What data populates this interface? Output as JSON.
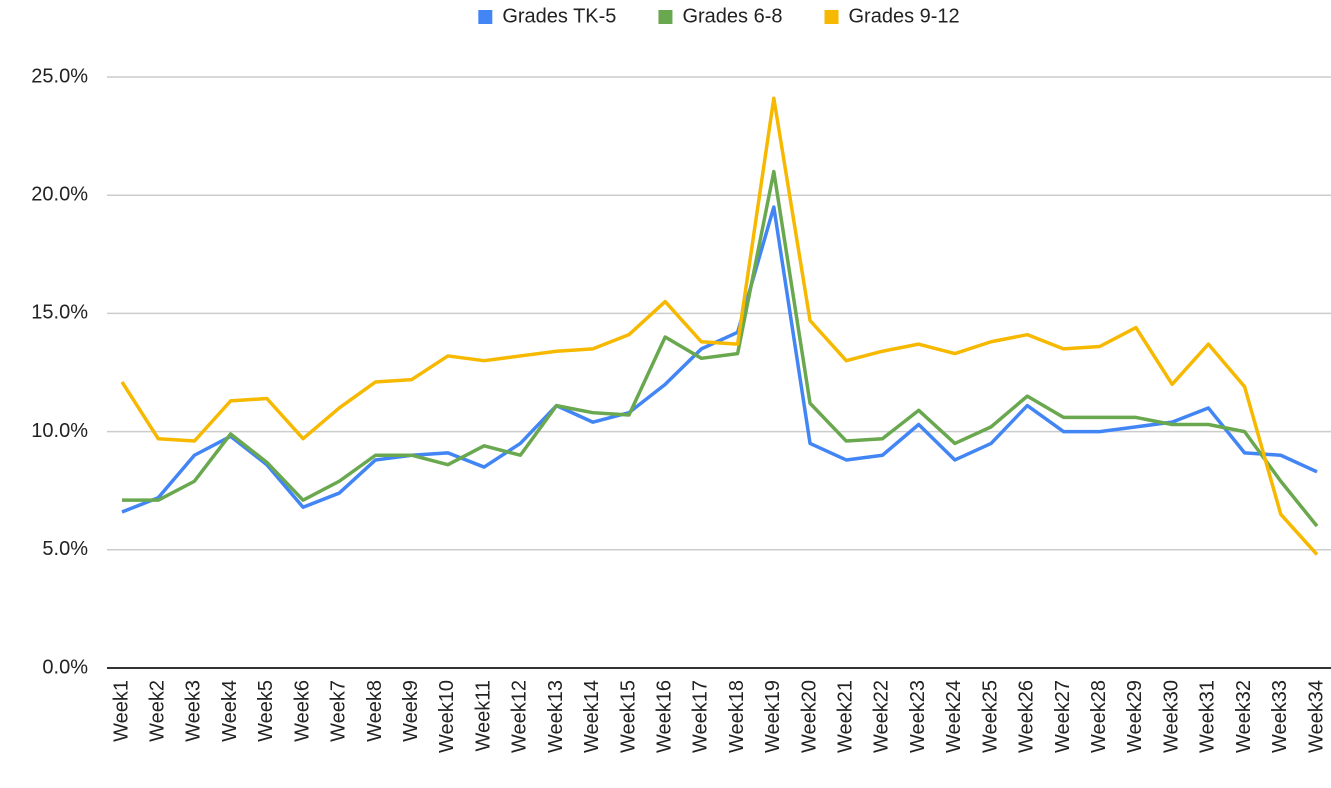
{
  "chart_data": {
    "type": "line",
    "categories": [
      "Week1",
      "Week2",
      "Week3",
      "Week4",
      "Week5",
      "Week6",
      "Week7",
      "Week8",
      "Week9",
      "Week10",
      "Week11",
      "Week12",
      "Week13",
      "Week14",
      "Week15",
      "Week16",
      "Week17",
      "Week18",
      "Week19",
      "Week20",
      "Week21",
      "Week22",
      "Week23",
      "Week24",
      "Week25",
      "Week26",
      "Week27",
      "Week28",
      "Week29",
      "Week30",
      "Week31",
      "Week32",
      "Week33",
      "Week34"
    ],
    "series": [
      {
        "name": "Grades TK-5",
        "color": "#4285f4",
        "values": [
          6.6,
          7.2,
          9.0,
          9.8,
          8.6,
          6.8,
          7.4,
          8.8,
          9.0,
          9.1,
          8.5,
          9.5,
          11.1,
          10.4,
          10.8,
          12.0,
          13.5,
          14.2,
          19.5,
          9.5,
          8.8,
          9.0,
          10.3,
          8.8,
          9.5,
          11.1,
          10.0,
          10.0,
          10.2,
          10.4,
          11.0,
          9.1,
          9.0,
          8.3
        ]
      },
      {
        "name": "Grades 6-8",
        "color": "#6aa84f",
        "values": [
          7.1,
          7.1,
          7.9,
          9.9,
          8.7,
          7.1,
          7.9,
          9.0,
          9.0,
          8.6,
          9.4,
          9.0,
          11.1,
          10.8,
          10.7,
          14.0,
          13.1,
          13.3,
          21.0,
          11.2,
          9.6,
          9.7,
          10.9,
          9.5,
          10.2,
          11.5,
          10.6,
          10.6,
          10.6,
          10.3,
          10.3,
          10.0,
          7.9,
          6.0
        ]
      },
      {
        "name": "Grades 9-12",
        "color": "#f6b900",
        "values": [
          12.1,
          9.7,
          9.6,
          11.3,
          11.4,
          9.7,
          11.0,
          12.1,
          12.2,
          13.2,
          13.0,
          13.2,
          13.4,
          13.5,
          14.1,
          15.5,
          13.8,
          13.7,
          24.1,
          14.7,
          13.0,
          13.4,
          13.7,
          13.3,
          13.8,
          14.1,
          13.5,
          13.6,
          14.4,
          12.0,
          13.7,
          11.9,
          6.5,
          4.8
        ]
      }
    ],
    "ylim": [
      0,
      25
    ],
    "yticks": [
      {
        "value": 0,
        "label": "0.0%"
      },
      {
        "value": 5,
        "label": "5.0%"
      },
      {
        "value": 10,
        "label": "10.0%"
      },
      {
        "value": 15,
        "label": "15.0%"
      },
      {
        "value": 20,
        "label": "20.0%"
      },
      {
        "value": 25,
        "label": "25.0%"
      }
    ],
    "grid": true,
    "legend": "top"
  }
}
